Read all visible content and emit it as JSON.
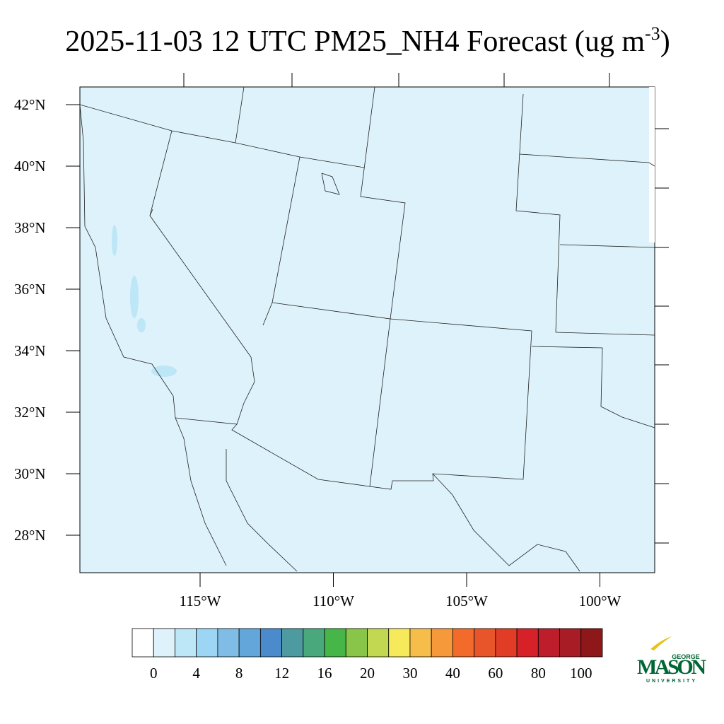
{
  "header": {
    "title_main": "2025-11-03 12 UTC PM25_NH4 Forecast (ug m",
    "title_sup": "-3",
    "title_end": ")"
  },
  "map": {
    "lat_ticks": [
      {
        "value": 42,
        "label": "42°N"
      },
      {
        "value": 40,
        "label": "40°N"
      },
      {
        "value": 38,
        "label": "38°N"
      },
      {
        "value": 36,
        "label": "36°N"
      },
      {
        "value": 34,
        "label": "34°N"
      },
      {
        "value": 32,
        "label": "32°N"
      },
      {
        "value": 30,
        "label": "30°N"
      },
      {
        "value": 28,
        "label": "28°N"
      }
    ],
    "lon_ticks": [
      {
        "value": -115,
        "label": "115°W"
      },
      {
        "value": -110,
        "label": "110°W"
      },
      {
        "value": -105,
        "label": "105°W"
      },
      {
        "value": -100,
        "label": "100°W"
      }
    ]
  },
  "colorbar": {
    "colors": [
      "#ffffff",
      "#ddf2fb",
      "#bde6f7",
      "#9dd6f4",
      "#80bde6",
      "#63a6da",
      "#4b8bcb",
      "#4d9aa0",
      "#4aa97c",
      "#46b649",
      "#88c548",
      "#c2d851",
      "#f6e95b",
      "#f7bd4a",
      "#f5993a",
      "#f36b2a",
      "#e9552a",
      "#e13c26",
      "#d72129",
      "#be1e2b",
      "#a81c25",
      "#8e1719"
    ],
    "labels": [
      "0",
      "4",
      "8",
      "12",
      "16",
      "20",
      "30",
      "40",
      "60",
      "80",
      "100"
    ]
  },
  "logo": {
    "top": "GEORGE",
    "main": "MASON",
    "bottom": "UNIVERSITY"
  }
}
